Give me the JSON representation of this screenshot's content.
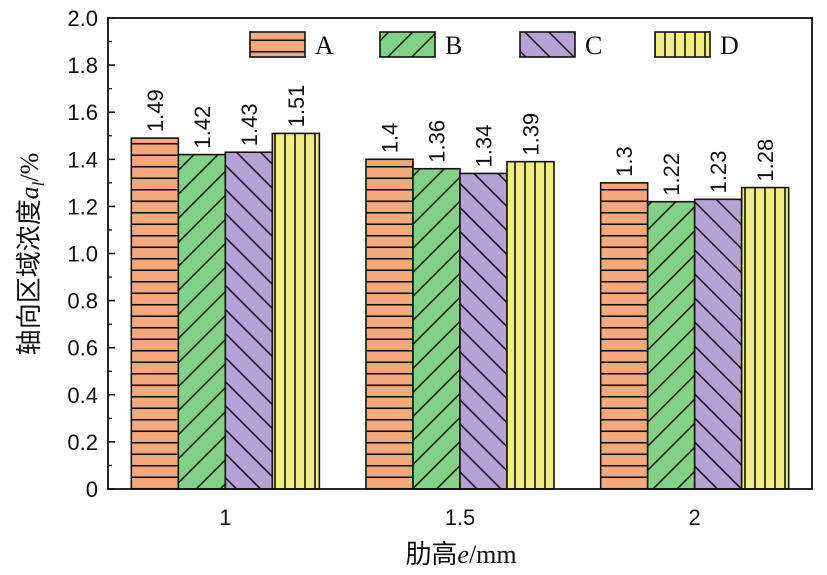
{
  "chart_data": {
    "type": "bar",
    "title": "",
    "xlabel": "肋高e/mm",
    "ylabel": "轴向区域浓度a_l/%",
    "categories": [
      "1",
      "1.5",
      "2"
    ],
    "series": [
      {
        "name": "A",
        "values": [
          1.49,
          1.4,
          1.3
        ],
        "value_labels": [
          "1.49",
          "1.4",
          "1.3"
        ],
        "color": "#F7A97E",
        "pattern": "horizontal-lines"
      },
      {
        "name": "B",
        "values": [
          1.42,
          1.36,
          1.22
        ],
        "value_labels": [
          "1.42",
          "1.36",
          "1.22"
        ],
        "color": "#83D184",
        "pattern": "diagonal-lines-up"
      },
      {
        "name": "C",
        "values": [
          1.43,
          1.34,
          1.23
        ],
        "value_labels": [
          "1.43",
          "1.34",
          "1.23"
        ],
        "color": "#B7A2D5",
        "pattern": "diagonal-lines-down"
      },
      {
        "name": "D",
        "values": [
          1.51,
          1.39,
          1.28
        ],
        "value_labels": [
          "1.51",
          "1.39",
          "1.28"
        ],
        "color": "#EEEE82",
        "pattern": "vertical-lines"
      }
    ],
    "ylim": [
      0,
      2.0
    ],
    "yticks": [
      "0",
      "0.2",
      "0.4",
      "0.6",
      "0.8",
      "1.0",
      "1.2",
      "1.4",
      "1.6",
      "1.8",
      "2.0"
    ],
    "grid": false,
    "legend_position": "top"
  }
}
